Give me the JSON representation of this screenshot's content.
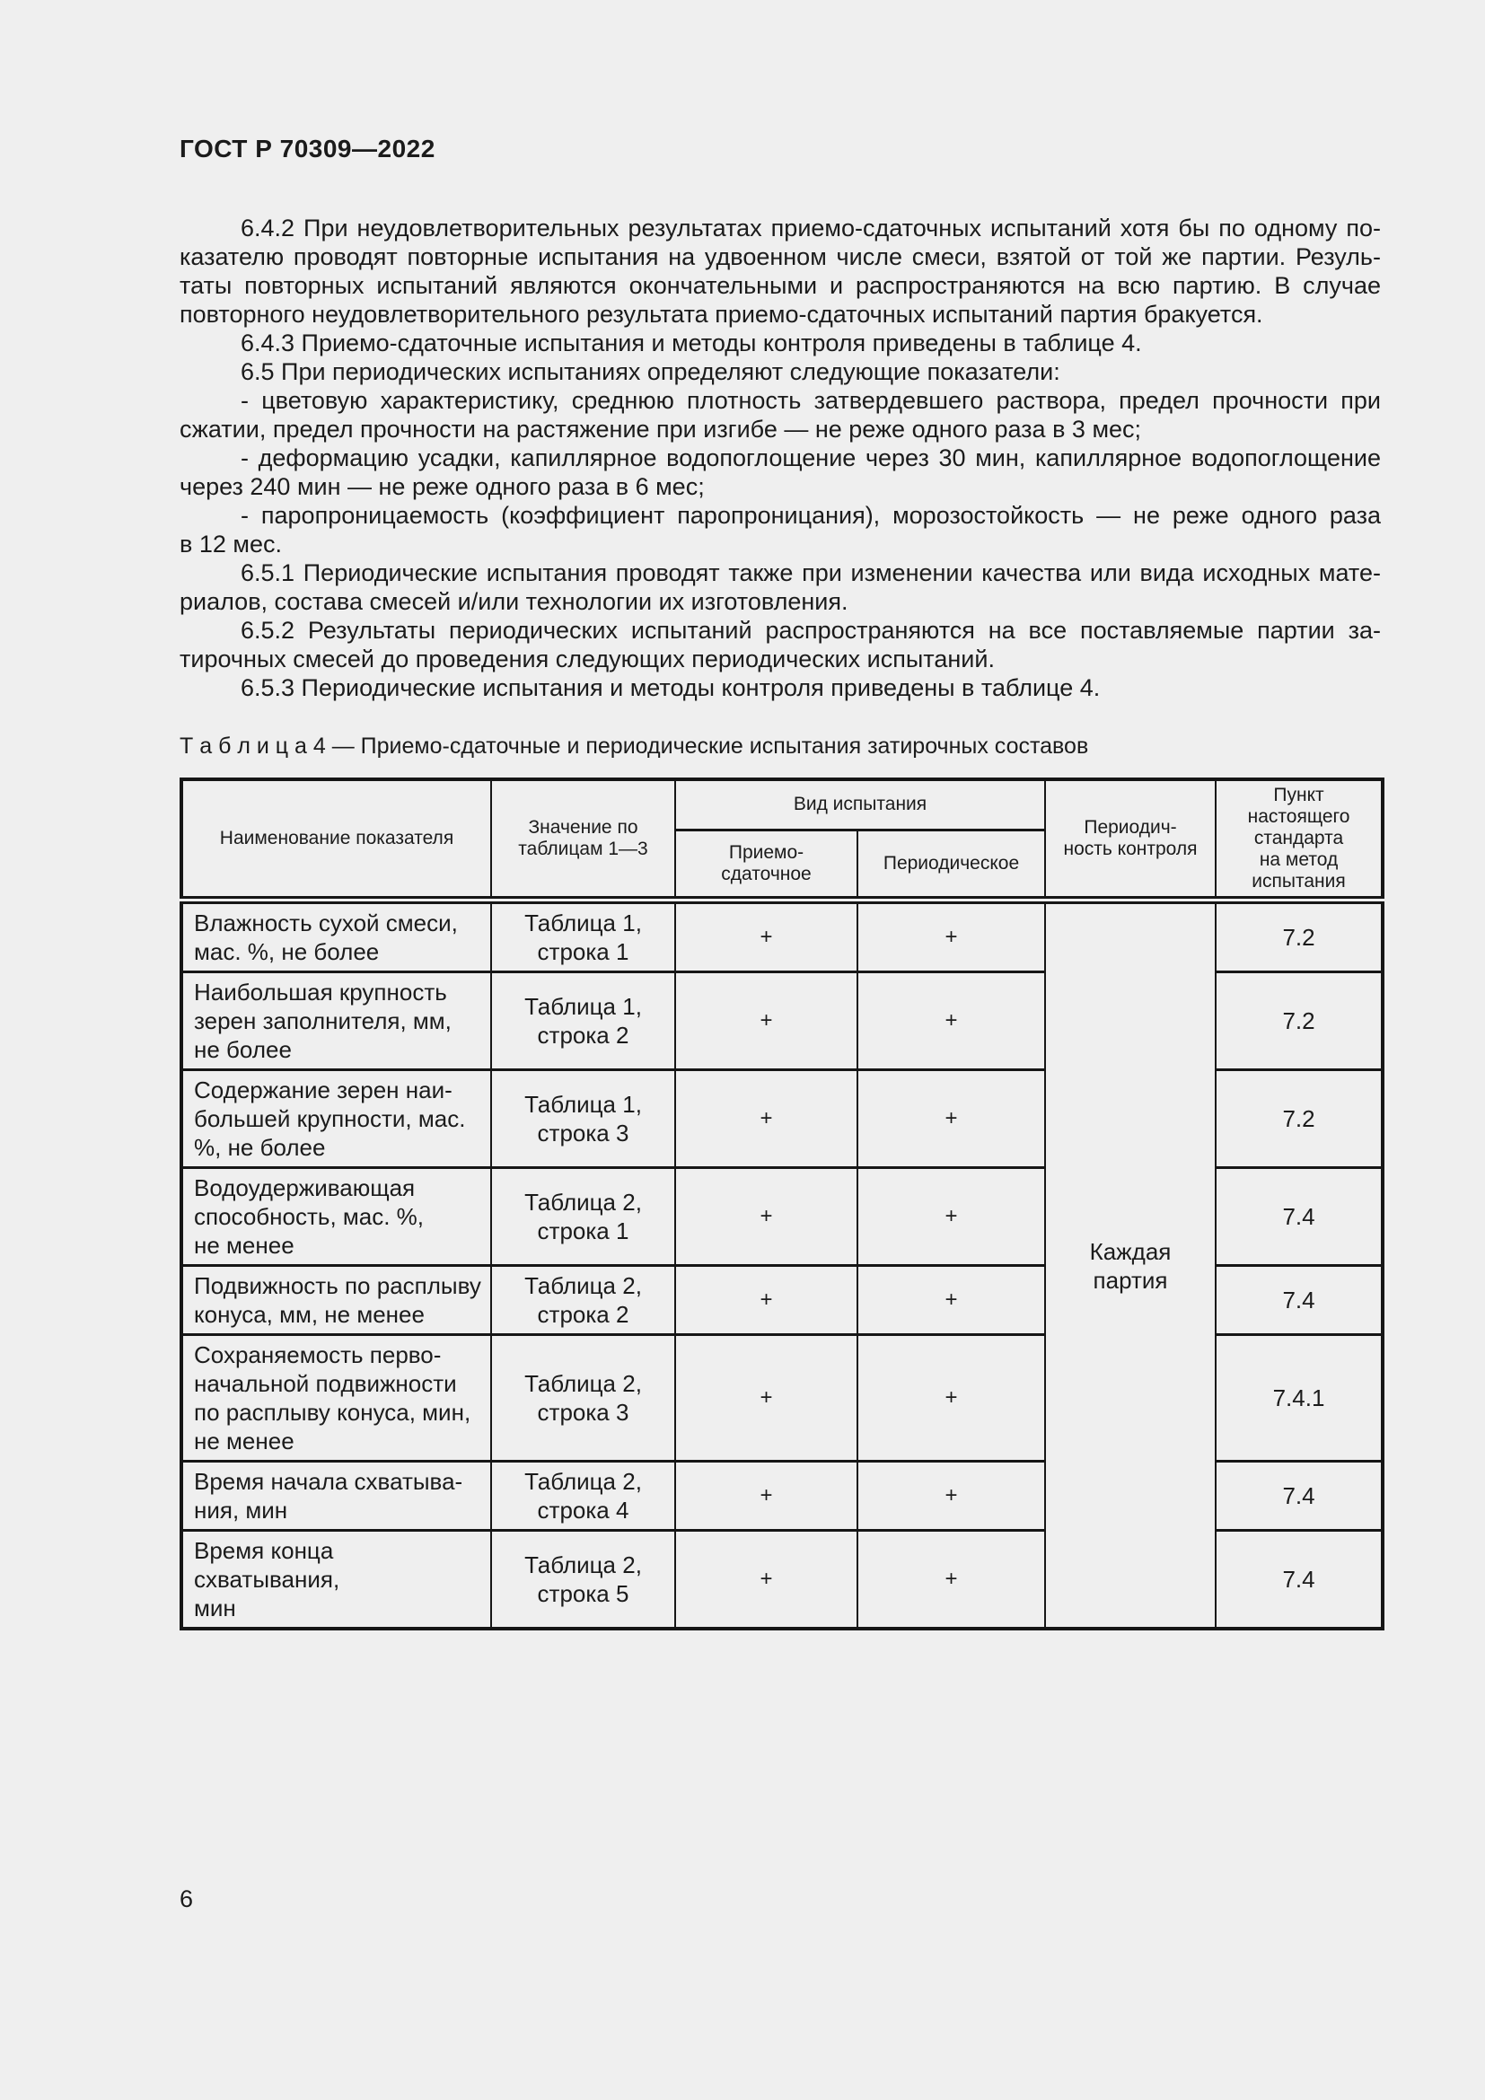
{
  "page": {
    "header": "ГОСТ Р 70309—2022",
    "page_number": "6"
  },
  "colors": {
    "page_background": "#efefef",
    "text": "#1b1b1b",
    "table_border": "#161616"
  },
  "paragraphs": [
    {
      "clause": "6.4.2",
      "lines": [
        "6.4.2 При неудовлетворительных результатах приемо-сдаточных испытаний хотя бы по одному по-",
        "казателю проводят повторные испытания на удвоенном числе смеси, взятой от той же партии. Резуль-",
        "таты повторных испытаний являются окончательными и распространяются на всю партию. В случае",
        "повторного неудовлетворительного результата приемо-сдаточных испытаний партия бракуется."
      ]
    },
    {
      "clause": "6.4.3",
      "lines": [
        "6.4.3 Приемо-сдаточные испытания и методы контроля приведены в таблице 4."
      ]
    },
    {
      "clause": "6.5",
      "lines": [
        "6.5 При периодических испытаниях определяют следующие показатели:"
      ]
    },
    {
      "clause": "",
      "lines": [
        "- цветовую характеристику, среднюю плотность затвердевшего раствора, предел прочности при",
        "сжатии, предел прочности на растяжение при изгибе — не реже одного раза в 3 мес;"
      ]
    },
    {
      "clause": "",
      "lines": [
        "- деформацию усадки, капиллярное водопоглощение через 30 мин, капиллярное водопоглощение",
        "через 240 мин — не реже одного раза в 6 мес;"
      ]
    },
    {
      "clause": "",
      "lines": [
        "- паропроницаемость (коэффициент паропроницания), морозостойкость — не реже одного раза",
        "в 12 мес."
      ]
    },
    {
      "clause": "6.5.1",
      "lines": [
        "6.5.1 Периодические испытания проводят также при изменении качества или вида исходных мате-",
        "риалов, состава смесей и/или технологии их изготовления."
      ]
    },
    {
      "clause": "6.5.2",
      "lines": [
        "6.5.2 Результаты периодических испытаний распространяются на все поставляемые партии за-",
        "тирочных смесей до проведения следующих периодических испытаний."
      ]
    },
    {
      "clause": "6.5.3",
      "lines": [
        "6.5.3 Периодические испытания и методы контроля приведены в таблице 4."
      ]
    }
  ],
  "table": {
    "caption": "Т а б л и ц а  4 — Приемо-сдаточные и периодические испытания затирочных составов",
    "header": {
      "col_name": "Наименование показателя",
      "col_value": "Значение по\nтаблицам 1—3",
      "group_test_type": "Вид испытания",
      "col_acceptance": "Приемо-\nсдаточное",
      "col_periodic": "Периодическое",
      "col_frequency": "Периодич-\nность контроля",
      "col_clause": "Пункт\nнастоящего\nстандарта\nна метод\nиспытания"
    },
    "frequency_merged": "Каждая\nпартия",
    "rows": [
      {
        "name": "Влажность сухой смеси,\nмас. %, не более",
        "value": "Таблица 1,\nстрока 1",
        "acceptance": "+",
        "periodic": "+",
        "clause": "7.2"
      },
      {
        "name": "Наибольшая крупность\nзерен заполнителя, мм,\nне более",
        "value": "Таблица 1,\nстрока 2",
        "acceptance": "+",
        "periodic": "+",
        "clause": "7.2"
      },
      {
        "name": "Содержание зерен наи-\nбольшей крупности, мас.\n%, не более",
        "value": "Таблица 1,\nстрока 3",
        "acceptance": "+",
        "periodic": "+",
        "clause": "7.2"
      },
      {
        "name": "Водоудерживающая\nспособность, мас. %,\nне менее",
        "value": "Таблица 2,\nстрока 1",
        "acceptance": "+",
        "periodic": "+",
        "clause": "7.4"
      },
      {
        "name": "Подвижность по расплыву\nконуса, мм, не менее",
        "value": "Таблица 2,\nстрока 2",
        "acceptance": "+",
        "periodic": "+",
        "clause": "7.4"
      },
      {
        "name": "Сохраняемость перво-\nначальной подвижности\nпо расплыву конуса, мин,\nне менее",
        "value": "Таблица 2,\nстрока 3",
        "acceptance": "+",
        "periodic": "+",
        "clause": "7.4.1"
      },
      {
        "name": "Время начала схватыва-\nния, мин",
        "value": "Таблица 2,\nстрока 4",
        "acceptance": "+",
        "periodic": "+",
        "clause": "7.4"
      },
      {
        "name": "Время конца схватывания,\nмин",
        "value": "Таблица 2,\nстрока 5",
        "acceptance": "+",
        "periodic": "+",
        "clause": "7.4"
      }
    ]
  }
}
